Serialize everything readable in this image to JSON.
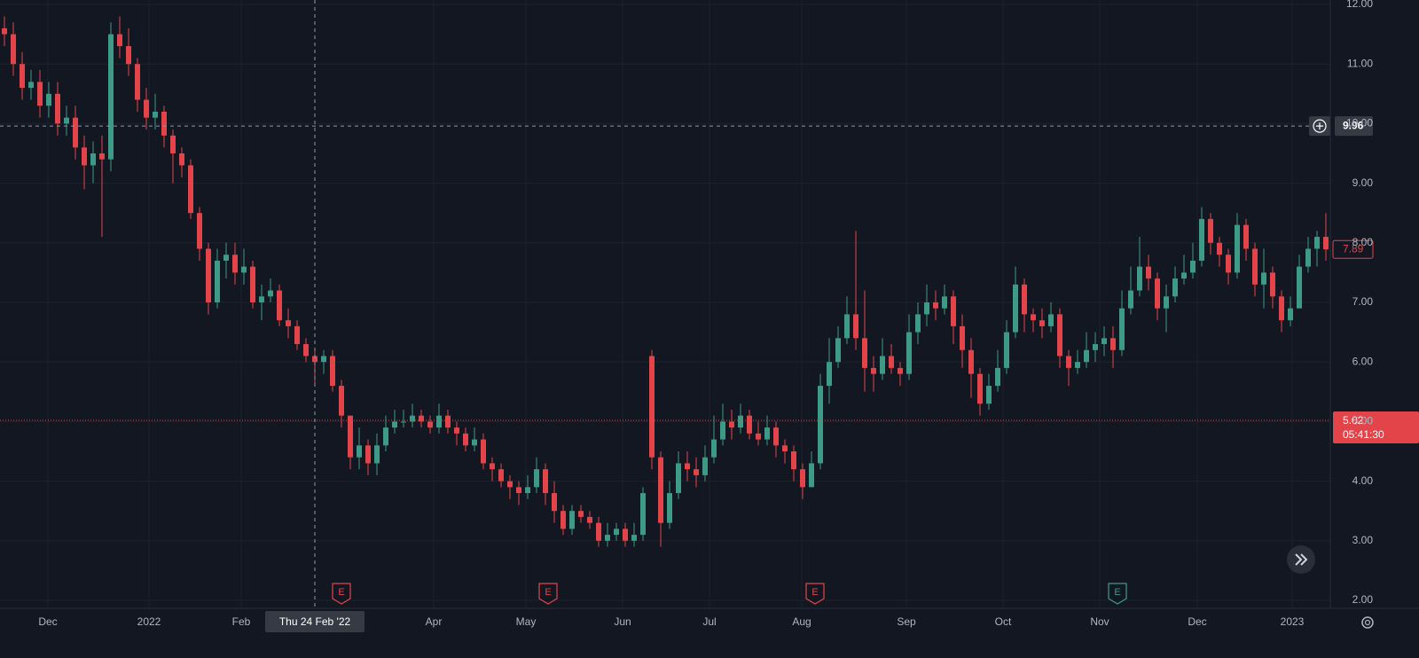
{
  "chart_data": {
    "type": "candlestick",
    "up_color": "#3d9a86",
    "down_color": "#e2444a",
    "grid": true,
    "xlim": [
      0,
      150
    ],
    "ylim": [
      2,
      12
    ],
    "yticks": [
      {
        "value": 2,
        "label": "2.00"
      },
      {
        "value": 3,
        "label": "3.00"
      },
      {
        "value": 4,
        "label": "4.00"
      },
      {
        "value": 5,
        "label": "5.00"
      },
      {
        "value": 6,
        "label": "6.00"
      },
      {
        "value": 7,
        "label": "7.00"
      },
      {
        "value": 8,
        "label": "8.00"
      },
      {
        "value": 9,
        "label": "9.00"
      },
      {
        "value": 10,
        "label": "10.00"
      },
      {
        "value": 11,
        "label": "11.00"
      },
      {
        "value": 12,
        "label": "12.00"
      }
    ],
    "xticks": [
      {
        "value": 5.4,
        "label": "Dec"
      },
      {
        "value": 16.8,
        "label": "2022"
      },
      {
        "value": 27.2,
        "label": "Feb"
      },
      {
        "value": 48.9,
        "label": "Apr"
      },
      {
        "value": 59.3,
        "label": "May"
      },
      {
        "value": 70.2,
        "label": "Jun"
      },
      {
        "value": 80.0,
        "label": "Jul"
      },
      {
        "value": 90.4,
        "label": "Aug"
      },
      {
        "value": 102.2,
        "label": "Sep"
      },
      {
        "value": 113.1,
        "label": "Oct"
      },
      {
        "value": 124.0,
        "label": "Nov"
      },
      {
        "value": 135.0,
        "label": "Dec"
      },
      {
        "value": 145.7,
        "label": "2023"
      }
    ],
    "crosshair": {
      "x": 35.5,
      "x_label": "Thu 24 Feb '22",
      "y": 9.96
    },
    "last_price": 5.02,
    "countdown": "05:41:30",
    "current_price": 7.89,
    "events": [
      {
        "x": 38.5,
        "label": "E",
        "color": "#e2444a"
      },
      {
        "x": 61.8,
        "label": "E",
        "color": "#e2444a"
      },
      {
        "x": 91.9,
        "label": "E",
        "color": "#e2444a"
      },
      {
        "x": 126.0,
        "label": "E",
        "color": "#3d9a86"
      }
    ],
    "ohlc": [
      [
        11.6,
        11.8,
        11.3,
        11.5
      ],
      [
        11.5,
        11.7,
        10.8,
        11.0
      ],
      [
        11.0,
        11.2,
        10.4,
        10.6
      ],
      [
        10.6,
        10.9,
        10.4,
        10.7
      ],
      [
        10.7,
        10.9,
        10.1,
        10.3
      ],
      [
        10.3,
        10.7,
        10.1,
        10.5
      ],
      [
        10.5,
        10.7,
        9.8,
        10.0
      ],
      [
        10.0,
        10.3,
        9.8,
        10.1
      ],
      [
        10.1,
        10.3,
        9.4,
        9.6
      ],
      [
        9.6,
        9.8,
        8.9,
        9.3
      ],
      [
        9.3,
        9.7,
        9.0,
        9.5
      ],
      [
        9.5,
        9.8,
        8.1,
        9.4
      ],
      [
        9.4,
        11.7,
        9.2,
        11.5
      ],
      [
        11.5,
        11.8,
        11.1,
        11.3
      ],
      [
        11.3,
        11.6,
        10.8,
        11.0
      ],
      [
        11.0,
        11.1,
        10.2,
        10.4
      ],
      [
        10.4,
        10.6,
        9.9,
        10.1
      ],
      [
        10.1,
        10.5,
        9.9,
        10.2
      ],
      [
        10.2,
        10.3,
        9.6,
        9.8
      ],
      [
        9.8,
        9.9,
        9.0,
        9.5
      ],
      [
        9.5,
        9.6,
        9.1,
        9.3
      ],
      [
        9.3,
        9.4,
        8.4,
        8.5
      ],
      [
        8.5,
        8.6,
        7.7,
        7.9
      ],
      [
        7.9,
        8.0,
        6.8,
        7.0
      ],
      [
        7.0,
        7.9,
        6.9,
        7.7
      ],
      [
        7.7,
        8.0,
        7.4,
        7.8
      ],
      [
        7.8,
        8.0,
        7.3,
        7.5
      ],
      [
        7.5,
        7.9,
        7.3,
        7.6
      ],
      [
        7.6,
        7.7,
        6.9,
        7.0
      ],
      [
        7.0,
        7.3,
        6.7,
        7.1
      ],
      [
        7.1,
        7.4,
        7.0,
        7.2
      ],
      [
        7.2,
        7.3,
        6.6,
        6.7
      ],
      [
        6.7,
        6.9,
        6.4,
        6.6
      ],
      [
        6.6,
        6.7,
        6.2,
        6.3
      ],
      [
        6.3,
        6.4,
        6.0,
        6.1
      ],
      [
        6.1,
        6.2,
        5.6,
        6.0
      ],
      [
        6.0,
        6.2,
        5.8,
        6.1
      ],
      [
        6.1,
        6.2,
        5.5,
        5.6
      ],
      [
        5.6,
        5.7,
        4.9,
        5.1
      ],
      [
        5.1,
        5.1,
        4.2,
        4.4
      ],
      [
        4.4,
        4.9,
        4.2,
        4.6
      ],
      [
        4.6,
        4.7,
        4.1,
        4.3
      ],
      [
        4.3,
        4.8,
        4.1,
        4.6
      ],
      [
        4.6,
        5.1,
        4.5,
        4.9
      ],
      [
        4.9,
        5.2,
        4.8,
        5.0
      ],
      [
        5.0,
        5.2,
        4.9,
        5.0
      ],
      [
        5.0,
        5.3,
        4.9,
        5.1
      ],
      [
        5.1,
        5.2,
        4.9,
        5.0
      ],
      [
        5.0,
        5.1,
        4.8,
        4.9
      ],
      [
        4.9,
        5.3,
        4.8,
        5.1
      ],
      [
        5.1,
        5.2,
        4.8,
        4.9
      ],
      [
        4.9,
        5.0,
        4.6,
        4.8
      ],
      [
        4.8,
        4.9,
        4.5,
        4.6
      ],
      [
        4.6,
        4.9,
        4.5,
        4.7
      ],
      [
        4.7,
        4.8,
        4.2,
        4.3
      ],
      [
        4.3,
        4.4,
        4.0,
        4.2
      ],
      [
        4.2,
        4.3,
        3.9,
        4.0
      ],
      [
        4.0,
        4.1,
        3.7,
        3.9
      ],
      [
        3.9,
        4.0,
        3.6,
        3.8
      ],
      [
        3.8,
        4.1,
        3.7,
        3.9
      ],
      [
        3.9,
        4.4,
        3.8,
        4.2
      ],
      [
        4.2,
        4.3,
        3.6,
        3.8
      ],
      [
        3.8,
        4.0,
        3.3,
        3.5
      ],
      [
        3.5,
        3.6,
        3.1,
        3.2
      ],
      [
        3.2,
        3.6,
        3.1,
        3.5
      ],
      [
        3.5,
        3.6,
        3.3,
        3.4
      ],
      [
        3.4,
        3.5,
        3.2,
        3.3
      ],
      [
        3.3,
        3.4,
        2.9,
        3.0
      ],
      [
        3.0,
        3.3,
        2.9,
        3.1
      ],
      [
        3.1,
        3.3,
        3.0,
        3.2
      ],
      [
        3.2,
        3.3,
        2.9,
        3.0
      ],
      [
        3.0,
        3.3,
        2.9,
        3.1
      ],
      [
        3.1,
        3.9,
        3.0,
        3.8
      ],
      [
        6.1,
        6.2,
        4.2,
        4.4
      ],
      [
        4.4,
        4.5,
        2.9,
        3.3
      ],
      [
        3.3,
        4.0,
        3.2,
        3.8
      ],
      [
        3.8,
        4.5,
        3.7,
        4.3
      ],
      [
        4.3,
        4.5,
        4.0,
        4.2
      ],
      [
        4.2,
        4.4,
        3.9,
        4.1
      ],
      [
        4.1,
        4.6,
        4.0,
        4.4
      ],
      [
        4.4,
        5.1,
        4.3,
        4.7
      ],
      [
        4.7,
        5.3,
        4.6,
        5.0
      ],
      [
        5.0,
        5.2,
        4.7,
        4.9
      ],
      [
        4.9,
        5.3,
        4.8,
        5.1
      ],
      [
        5.1,
        5.2,
        4.7,
        4.8
      ],
      [
        4.8,
        5.0,
        4.6,
        4.7
      ],
      [
        4.7,
        5.1,
        4.6,
        4.9
      ],
      [
        4.9,
        5.0,
        4.4,
        4.6
      ],
      [
        4.6,
        4.7,
        4.3,
        4.5
      ],
      [
        4.5,
        4.6,
        4.0,
        4.2
      ],
      [
        4.2,
        4.3,
        3.7,
        3.9
      ],
      [
        3.9,
        4.5,
        3.9,
        4.3
      ],
      [
        4.3,
        5.8,
        4.2,
        5.6
      ],
      [
        5.6,
        6.4,
        5.3,
        6.0
      ],
      [
        6.0,
        6.6,
        5.9,
        6.4
      ],
      [
        6.4,
        7.1,
        6.3,
        6.8
      ],
      [
        6.8,
        8.2,
        6.2,
        6.4
      ],
      [
        6.4,
        7.2,
        5.5,
        5.9
      ],
      [
        5.9,
        6.1,
        5.5,
        5.8
      ],
      [
        5.8,
        6.4,
        5.7,
        6.1
      ],
      [
        6.1,
        6.3,
        5.8,
        5.9
      ],
      [
        5.9,
        6.0,
        5.6,
        5.8
      ],
      [
        5.8,
        6.8,
        5.7,
        6.5
      ],
      [
        6.5,
        7.0,
        6.3,
        6.8
      ],
      [
        6.8,
        7.3,
        6.6,
        7.0
      ],
      [
        7.0,
        7.2,
        6.7,
        6.9
      ],
      [
        6.9,
        7.3,
        6.8,
        7.1
      ],
      [
        7.1,
        7.2,
        6.3,
        6.6
      ],
      [
        6.6,
        6.8,
        5.9,
        6.2
      ],
      [
        6.2,
        6.4,
        5.4,
        5.8
      ],
      [
        5.8,
        5.9,
        5.1,
        5.3
      ],
      [
        5.3,
        5.8,
        5.2,
        5.6
      ],
      [
        5.6,
        6.2,
        5.5,
        5.9
      ],
      [
        5.9,
        6.7,
        5.8,
        6.5
      ],
      [
        6.5,
        7.6,
        6.4,
        7.3
      ],
      [
        7.3,
        7.4,
        6.5,
        6.8
      ],
      [
        6.8,
        6.9,
        6.5,
        6.7
      ],
      [
        6.7,
        6.9,
        6.4,
        6.6
      ],
      [
        6.6,
        7.0,
        6.5,
        6.8
      ],
      [
        6.8,
        6.9,
        5.9,
        6.1
      ],
      [
        6.1,
        6.2,
        5.6,
        5.9
      ],
      [
        5.9,
        6.2,
        5.8,
        6.0
      ],
      [
        6.0,
        6.5,
        5.9,
        6.2
      ],
      [
        6.2,
        6.5,
        6.0,
        6.3
      ],
      [
        6.3,
        6.6,
        6.1,
        6.4
      ],
      [
        6.4,
        6.6,
        5.9,
        6.2
      ],
      [
        6.2,
        7.2,
        6.1,
        6.9
      ],
      [
        6.9,
        7.6,
        6.8,
        7.2
      ],
      [
        7.2,
        8.1,
        7.1,
        7.6
      ],
      [
        7.6,
        7.8,
        7.2,
        7.4
      ],
      [
        7.4,
        7.5,
        6.7,
        6.9
      ],
      [
        6.9,
        7.3,
        6.5,
        7.1
      ],
      [
        7.1,
        7.6,
        7.0,
        7.4
      ],
      [
        7.4,
        7.8,
        7.3,
        7.5
      ],
      [
        7.5,
        8.0,
        7.4,
        7.7
      ],
      [
        7.7,
        8.6,
        7.6,
        8.4
      ],
      [
        8.4,
        8.5,
        7.8,
        8.0
      ],
      [
        8.0,
        8.1,
        7.6,
        7.8
      ],
      [
        7.8,
        7.9,
        7.3,
        7.5
      ],
      [
        7.5,
        8.5,
        7.4,
        8.3
      ],
      [
        8.3,
        8.4,
        7.7,
        7.9
      ],
      [
        7.9,
        8.0,
        7.1,
        7.3
      ],
      [
        7.3,
        7.9,
        6.9,
        7.5
      ],
      [
        7.5,
        7.6,
        6.9,
        7.1
      ],
      [
        7.1,
        7.2,
        6.5,
        6.7
      ],
      [
        6.7,
        7.1,
        6.6,
        6.9
      ],
      [
        6.9,
        7.8,
        6.9,
        7.6
      ],
      [
        7.6,
        8.1,
        7.5,
        7.9
      ],
      [
        7.9,
        8.2,
        7.6,
        8.1
      ],
      [
        8.1,
        8.5,
        7.7,
        7.89
      ]
    ]
  }
}
